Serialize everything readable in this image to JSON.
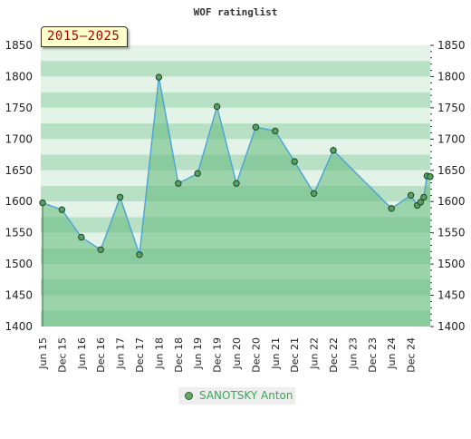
{
  "chart_data": {
    "type": "area",
    "title": "WOF ratinglist",
    "period": "2015–2025",
    "ylim": [
      1400,
      1850
    ],
    "y_ticks": [
      1400,
      1450,
      1500,
      1550,
      1600,
      1650,
      1700,
      1750,
      1800,
      1850
    ],
    "x_tick_labels": [
      "Jun 15",
      "Dec 15",
      "Jun 16",
      "Dec 16",
      "Jun 17",
      "Dec 17",
      "Jun 18",
      "Dec 18",
      "Jun 19",
      "Dec 19",
      "Jun 20",
      "Dec 20",
      "Jun 21",
      "Dec 21",
      "Jun 22",
      "Dec 22",
      "Jun 23",
      "Dec 23",
      "Jun 24",
      "Dec 24"
    ],
    "series": [
      {
        "name": "SANOTSKY Anton",
        "points": [
          {
            "x": "Jun 15",
            "y": 1598
          },
          {
            "x": "Dec 15",
            "y": 1587
          },
          {
            "x": "Jun 16",
            "y": 1543
          },
          {
            "x": "Dec 16",
            "y": 1523
          },
          {
            "x": "Jun 17",
            "y": 1607
          },
          {
            "x": "Dec 17",
            "y": 1515
          },
          {
            "x": "Jun 18",
            "y": 1799
          },
          {
            "x": "Dec 18",
            "y": 1629
          },
          {
            "x": "Jun 19",
            "y": 1645
          },
          {
            "x": "Dec 19",
            "y": 1752
          },
          {
            "x": "Jun 20",
            "y": 1629
          },
          {
            "x": "Dec 20",
            "y": 1719
          },
          {
            "x": "Jun 21",
            "y": 1713
          },
          {
            "x": "Dec 21",
            "y": 1664
          },
          {
            "x": "Jun 22",
            "y": 1613
          },
          {
            "x": "Dec 22",
            "y": 1682
          },
          {
            "x": "Jun 24",
            "y": 1589
          },
          {
            "x": "Dec 24",
            "y": 1610
          },
          {
            "x": "Feb 25",
            "y": 1594
          },
          {
            "x": "Mar 25",
            "y": 1599
          },
          {
            "x": "Apr 25",
            "y": 1607
          },
          {
            "x": "May 25",
            "y": 1641
          },
          {
            "x": "Jun 25",
            "y": 1640
          }
        ]
      }
    ],
    "legend": "bottom-center",
    "grid": "horizontal bands",
    "colors": {
      "line": "#4aa3d8",
      "fill": "#6dbf84",
      "marker": "#55a066",
      "marker_edge": "#224422",
      "band_dark": "#b8e0c4",
      "band_light": "#e4f3e8",
      "legend_text": "#33aa55",
      "period_text": "#aa0000",
      "period_bg": "#ffffcc"
    }
  }
}
